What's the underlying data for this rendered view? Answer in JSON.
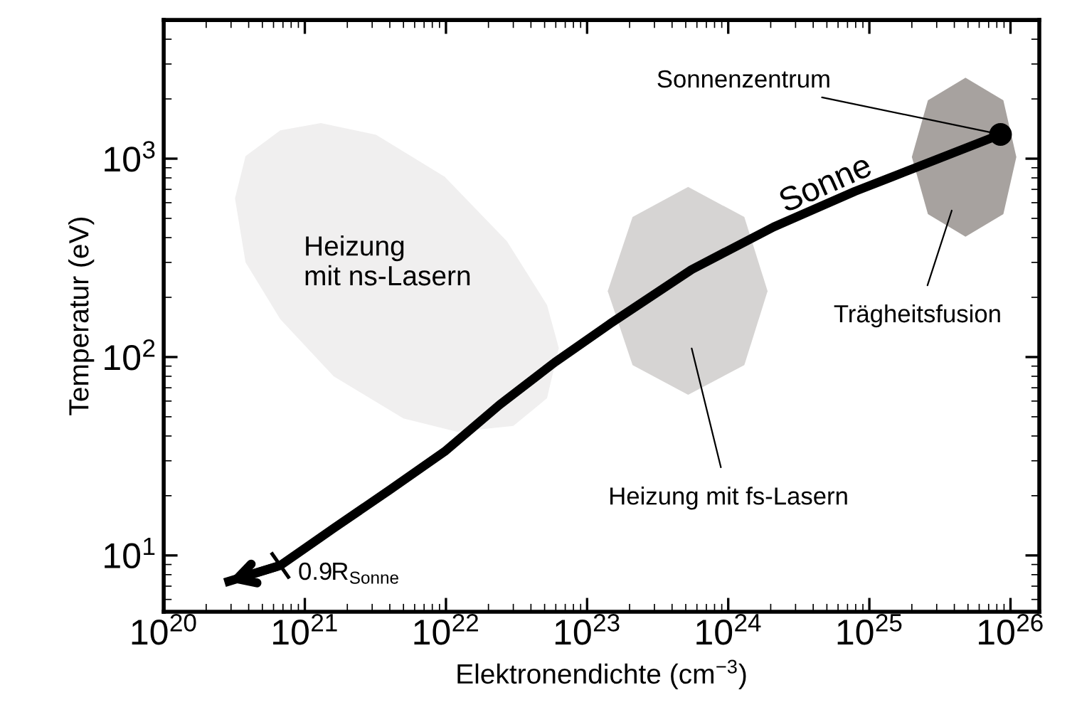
{
  "chart_data": {
    "type": "line",
    "xlabel": "Elektronendichte (cm$^{−3}$)",
    "ylabel": "Temperatur (eV)",
    "log": "xy",
    "grid": false,
    "legend": false,
    "xlim": [
      1e+20,
      1.6e+26
    ],
    "ylim": [
      5.2,
      5000
    ],
    "xticks": [
      {
        "value": 1e+20,
        "label": "10$^{20}$"
      },
      {
        "value": 1e+21,
        "label": "10$^{21}$"
      },
      {
        "value": 1e+22,
        "label": "10$^{22}$"
      },
      {
        "value": 1e+23,
        "label": "10$^{23}$"
      },
      {
        "value": 1e+24,
        "label": "10$^{24}$"
      },
      {
        "value": 1e+25,
        "label": "10$^{25}$"
      },
      {
        "value": 1e+26,
        "label": "10$^{26}$"
      }
    ],
    "yticks": [
      {
        "value": 10,
        "label": "10$^{1}$"
      },
      {
        "value": 100,
        "label": "10$^{2}$"
      },
      {
        "value": 1000,
        "label": "10$^{3}$"
      }
    ],
    "series": [
      {
        "type": "area",
        "color": "#f0efef",
        "x": [
          3.2e+20,
          3.8e+20,
          6.7e+20,
          1.3e+21,
          3.2e+21,
          9.8e+21,
          2.7e+22,
          5.2e+22,
          6.3e+22,
          5.2e+22,
          3e+22,
          1.2e+22,
          5e+21,
          1.6e+21,
          6.7e+20,
          3.8e+20
        ],
        "values": [
          630,
          1030,
          1390,
          1510,
          1320,
          810,
          384,
          183,
          111,
          62,
          45,
          42,
          49,
          80,
          155,
          300
        ]
      },
      {
        "type": "area",
        "color": "#d6d4d3",
        "x": [
          1.4e+23,
          2.1e+23,
          5.2e+23,
          1.3e+24,
          1.9e+24,
          1.3e+24,
          5.2e+23,
          2.1e+23
        ],
        "values": [
          215,
          508,
          720,
          508,
          215,
          91,
          64.5,
          91
        ]
      },
      {
        "type": "area",
        "color": "#a7a29f",
        "x": [
          2e+25,
          2.6e+25,
          4.8e+25,
          8.9e+25,
          1.1e+26,
          8.9e+25,
          4.8e+25,
          2.6e+25
        ],
        "values": [
          1020,
          1970,
          2560,
          1970,
          1020,
          525,
          404,
          525
        ]
      },
      {
        "name": "Sonne",
        "color": "#000000",
        "line_style": "solid",
        "marker": "none",
        "x": [
          8.5e+25,
          3.1e+25,
          7.9e+24,
          2.1e+24,
          5.5e+23,
          1.45e+23,
          5.9e+22,
          2.4e+22,
          9.8e+21,
          4e+21,
          1.6e+21,
          6.7e+20,
          2.7e+20
        ],
        "values": [
          1325,
          1000,
          684,
          453,
          276,
          147,
          94,
          57.5,
          33.4,
          21.4,
          13.7,
          8.9,
          7.3
        ]
      },
      {
        "type": "scatter",
        "color": "#000000",
        "marker": "circle",
        "x": [
          8.5e+25
        ],
        "values": [
          1325
        ]
      }
    ],
    "annotations": [
      "Heizung\nmit ns-Lasern",
      "Heizung mit fs-Lasern",
      "Trägheitsfusion",
      {
        "text": "Sonnenzentrum",
        "x": 8.5e+25,
        "y": 1325
      },
      {
        "text": "0.9R$_{Sonne}$",
        "x": 6.7e+20,
        "y": 8.9
      }
    ]
  }
}
